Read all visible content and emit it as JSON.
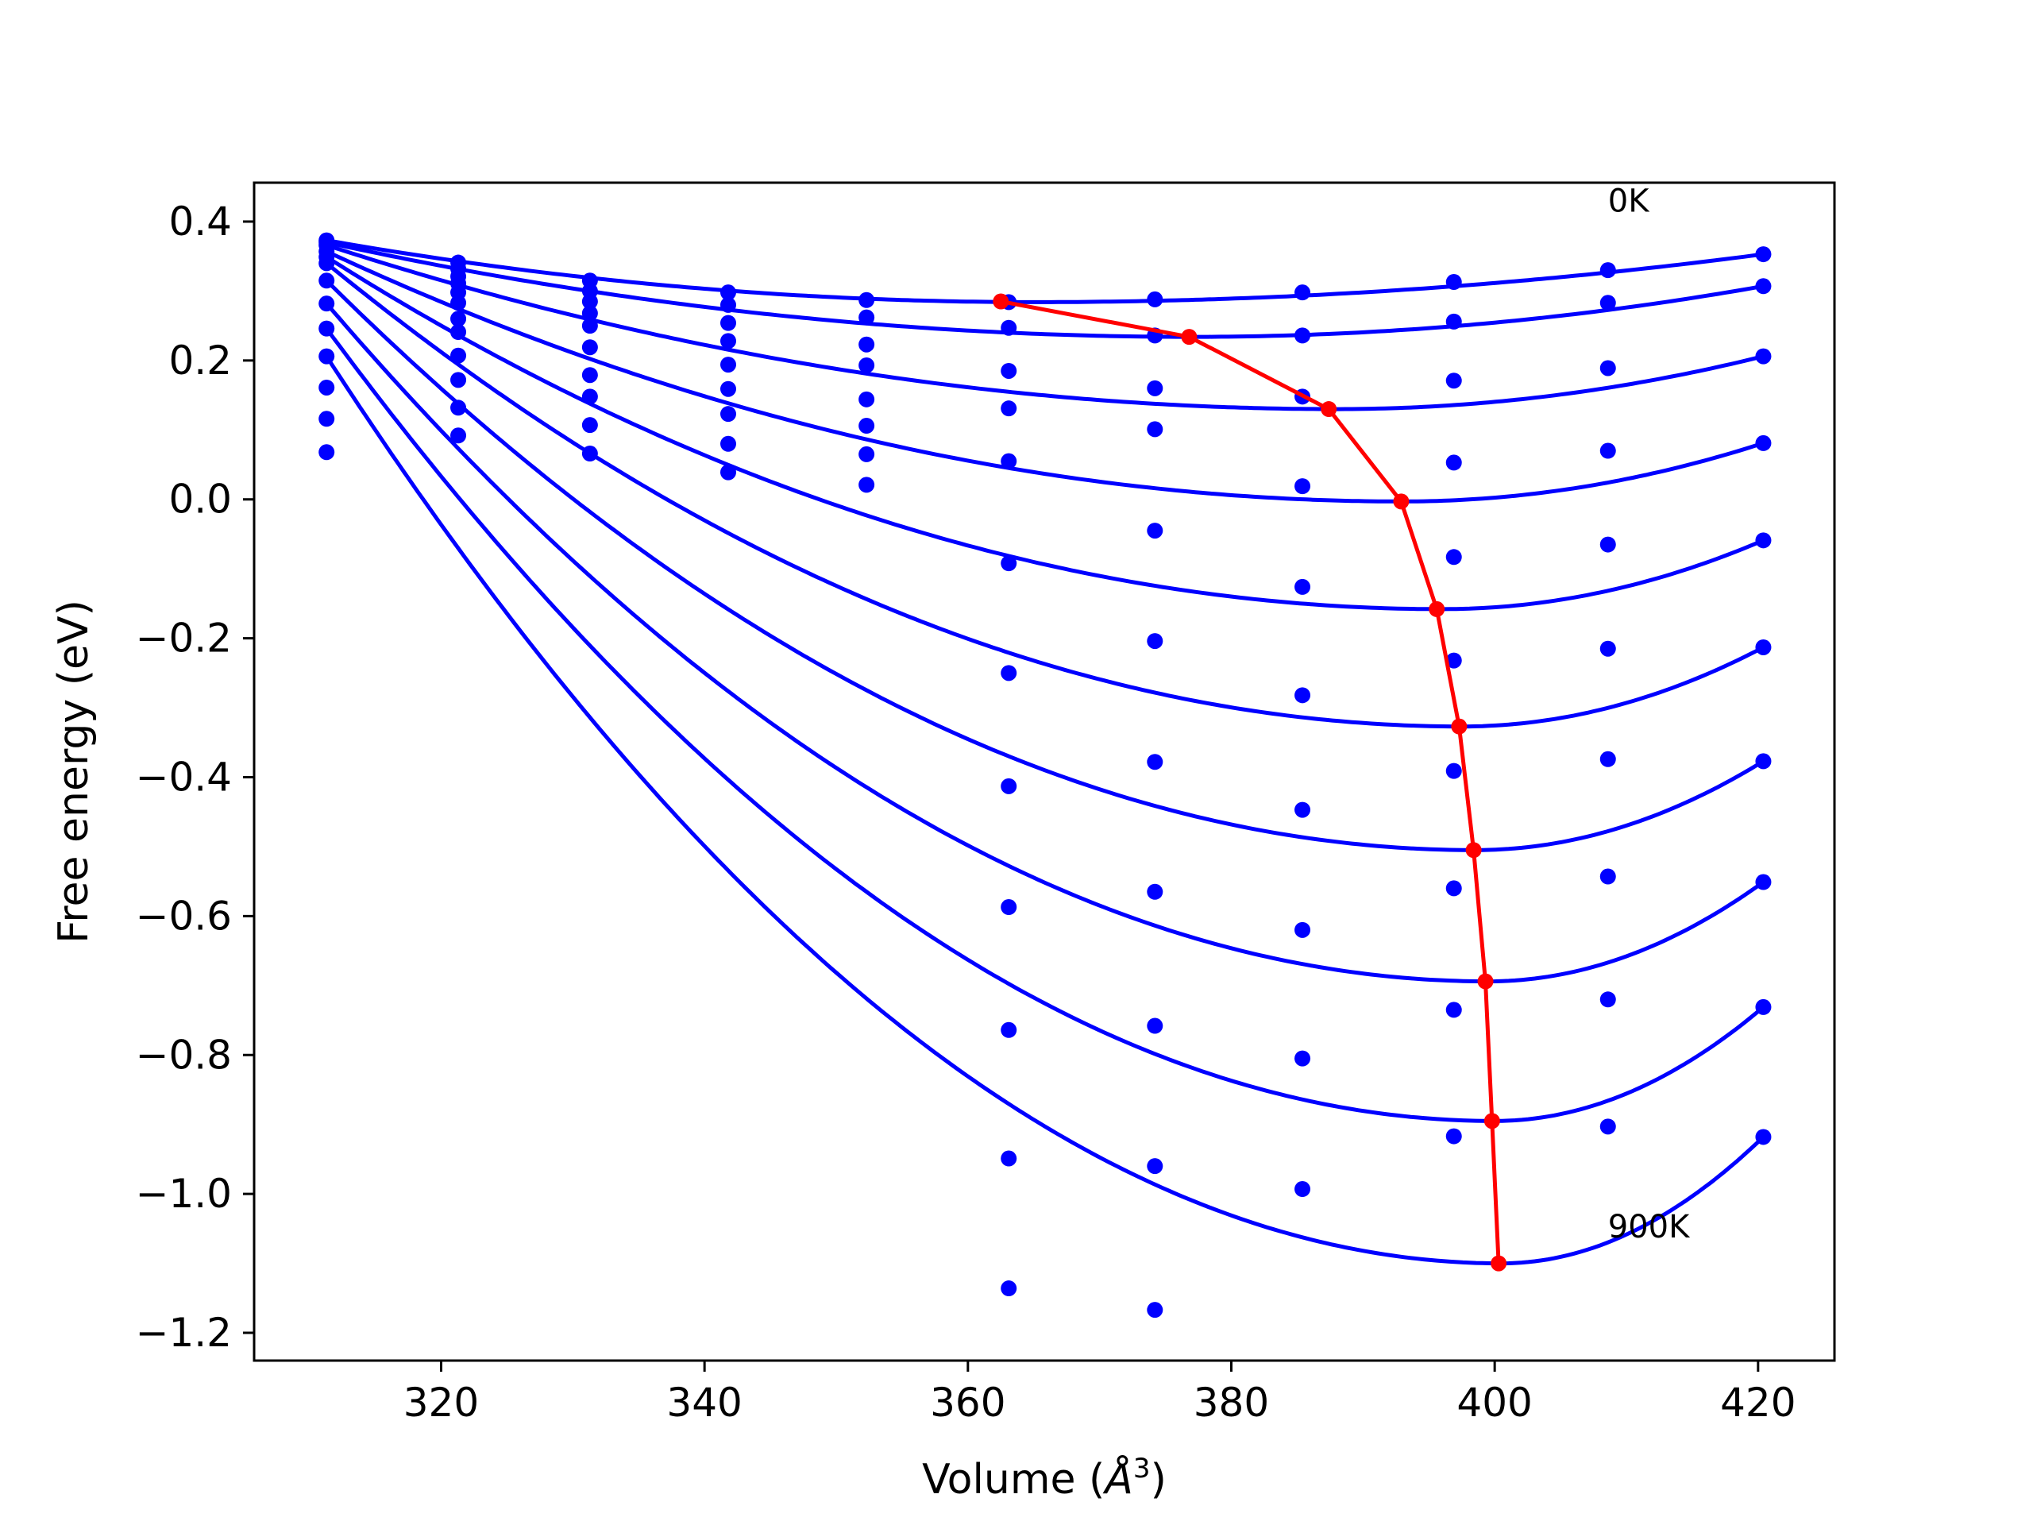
{
  "chart_data": {
    "type": "line",
    "title": "",
    "xlabel": "Volume (",
    "xlabel_symbol": "Å",
    "xlabel_exponent": "3",
    "xlabel_close": ")",
    "ylabel": "Free energy (eV)",
    "xlim": [
      305.8,
      425.8
    ],
    "ylim": [
      -1.24,
      0.456
    ],
    "xticks": [
      320,
      340,
      360,
      380,
      400,
      420
    ],
    "yticks": [
      0.4,
      0.2,
      0.0,
      -0.2,
      -0.4,
      -0.6,
      -0.8,
      -1.0,
      -1.2
    ],
    "xtick_labels": [
      "320",
      "340",
      "360",
      "380",
      "400",
      "420"
    ],
    "ytick_labels": [
      "0.4",
      "0.2",
      "0.0",
      "−0.2",
      "−0.4",
      "−0.6",
      "−0.8",
      "−1.0",
      "−1.2"
    ],
    "grid": false,
    "legend": false,
    "annotations": [
      {
        "text": "0K",
        "x": 408.6,
        "y": 0.414
      },
      {
        "text": "900K",
        "x": 408.6,
        "y": -1.063
      }
    ],
    "fit_color": "#0000ff",
    "min_color": "#ff0000",
    "volumes": [
      311.3,
      321.3,
      331.3,
      341.8,
      352.3,
      363.1,
      374.2,
      385.4,
      396.9,
      408.6,
      420.4
    ],
    "curves": [
      {
        "vmin": 365.0,
        "emin": 0.284,
        "points": [
          [
            311.3,
            0.373
          ],
          [
            321.3,
            0.341
          ],
          [
            331.3,
            0.315
          ],
          [
            341.8,
            0.298
          ],
          [
            352.3,
            0.287
          ],
          [
            363.1,
            0.284
          ],
          [
            374.2,
            0.288
          ],
          [
            385.4,
            0.298
          ],
          [
            396.9,
            0.313
          ],
          [
            408.6,
            0.33
          ],
          [
            420.4,
            0.353
          ]
        ]
      },
      {
        "vmin": 377.0,
        "emin": 0.234,
        "points": [
          [
            311.3,
            0.37
          ],
          [
            321.3,
            0.332
          ],
          [
            331.3,
            0.3
          ],
          [
            341.8,
            0.28
          ],
          [
            352.3,
            0.262
          ],
          [
            363.1,
            0.247
          ],
          [
            374.2,
            0.236
          ],
          [
            385.4,
            0.236
          ],
          [
            396.9,
            0.256
          ],
          [
            408.6,
            0.283
          ],
          [
            420.4,
            0.307
          ]
        ]
      },
      {
        "vmin": 388.0,
        "emin": 0.13,
        "points": [
          [
            311.3,
            0.366
          ],
          [
            321.3,
            0.321
          ],
          [
            331.3,
            0.285
          ],
          [
            341.8,
            0.254
          ],
          [
            352.3,
            0.223
          ],
          [
            363.1,
            0.185
          ],
          [
            374.2,
            0.16
          ],
          [
            385.4,
            0.148
          ],
          [
            396.9,
            0.171
          ],
          [
            408.6,
            0.189
          ],
          [
            420.4,
            0.206
          ]
        ]
      },
      {
        "vmin": 393.0,
        "emin": -0.003,
        "points": [
          [
            311.3,
            0.357
          ],
          [
            321.3,
            0.311
          ],
          [
            331.3,
            0.268
          ],
          [
            341.8,
            0.228
          ],
          [
            352.3,
            0.193
          ],
          [
            363.1,
            0.131
          ],
          [
            374.2,
            0.101
          ],
          [
            385.4,
            0.019
          ],
          [
            396.9,
            0.053
          ],
          [
            408.6,
            0.07
          ],
          [
            420.4,
            0.081
          ]
        ]
      },
      {
        "vmin": 396.0,
        "emin": -0.158,
        "points": [
          [
            311.3,
            0.349
          ],
          [
            321.3,
            0.298
          ],
          [
            331.3,
            0.25
          ],
          [
            341.8,
            0.194
          ],
          [
            352.3,
            0.144
          ],
          [
            363.1,
            0.055
          ],
          [
            374.2,
            -0.045
          ],
          [
            385.4,
            -0.126
          ],
          [
            396.9,
            -0.083
          ],
          [
            408.6,
            -0.065
          ],
          [
            420.4,
            -0.059
          ]
        ]
      },
      {
        "vmin": 397.5,
        "emin": -0.327,
        "points": [
          [
            311.3,
            0.34
          ],
          [
            321.3,
            0.283
          ],
          [
            331.3,
            0.219
          ],
          [
            341.8,
            0.159
          ],
          [
            352.3,
            0.106
          ],
          [
            363.1,
            -0.092
          ],
          [
            374.2,
            -0.204
          ],
          [
            385.4,
            -0.282
          ],
          [
            396.9,
            -0.232
          ],
          [
            408.6,
            -0.215
          ],
          [
            420.4,
            -0.213
          ]
        ]
      },
      {
        "vmin": 398.5,
        "emin": -0.505,
        "points": [
          [
            311.3,
            0.315
          ],
          [
            321.3,
            0.26
          ],
          [
            331.3,
            0.179
          ],
          [
            341.8,
            0.123
          ],
          [
            352.3,
            0.065
          ],
          [
            363.1,
            -0.25
          ],
          [
            374.2,
            -0.378
          ],
          [
            385.4,
            -0.447
          ],
          [
            396.9,
            -0.391
          ],
          [
            408.6,
            -0.374
          ],
          [
            420.4,
            -0.377
          ]
        ]
      },
      {
        "vmin": 399.5,
        "emin": -0.694,
        "points": [
          [
            311.3,
            0.282
          ],
          [
            321.3,
            0.241
          ],
          [
            331.3,
            0.148
          ],
          [
            341.8,
            0.08
          ],
          [
            352.3,
            0.021
          ],
          [
            363.1,
            -0.413
          ],
          [
            374.2,
            -0.565
          ],
          [
            385.4,
            -0.62
          ],
          [
            396.9,
            -0.56
          ],
          [
            408.6,
            -0.543
          ],
          [
            420.4,
            -0.551
          ]
        ]
      },
      {
        "vmin": 400.0,
        "emin": -0.895,
        "points": [
          [
            311.3,
            0.246
          ],
          [
            321.3,
            0.207
          ],
          [
            331.3,
            0.107
          ],
          [
            341.8,
            0.039
          ],
          [
            363.1,
            -0.587
          ],
          [
            374.2,
            -0.758
          ],
          [
            385.4,
            -0.805
          ],
          [
            396.9,
            -0.735
          ],
          [
            408.6,
            -0.72
          ],
          [
            420.4,
            -0.731
          ]
        ]
      },
      {
        "vmin": 400.5,
        "emin": -1.1,
        "points": [
          [
            311.3,
            0.206
          ],
          [
            321.3,
            0.172
          ],
          [
            331.3,
            0.066
          ],
          [
            363.1,
            -0.764
          ],
          [
            374.2,
            -0.96
          ],
          [
            385.4,
            -0.993
          ],
          [
            396.9,
            -0.917
          ],
          [
            408.6,
            -0.903
          ],
          [
            420.4,
            -0.918
          ]
        ]
      }
    ],
    "extra_points": [
      [
        311.3,
        0.161
      ],
      [
        311.3,
        0.116
      ],
      [
        311.3,
        0.068
      ],
      [
        321.3,
        0.132
      ],
      [
        321.3,
        0.092
      ],
      [
        363.1,
        -0.949
      ],
      [
        363.1,
        -1.136
      ],
      [
        374.2,
        -1.167
      ]
    ],
    "minimum_path": [
      [
        362.5,
        0.285
      ],
      [
        376.8,
        0.234
      ],
      [
        387.4,
        0.13
      ],
      [
        392.9,
        -0.003
      ],
      [
        395.6,
        -0.158
      ],
      [
        397.3,
        -0.327
      ],
      [
        398.4,
        -0.505
      ],
      [
        399.3,
        -0.694
      ],
      [
        399.8,
        -0.895
      ],
      [
        400.3,
        -1.1
      ]
    ]
  }
}
